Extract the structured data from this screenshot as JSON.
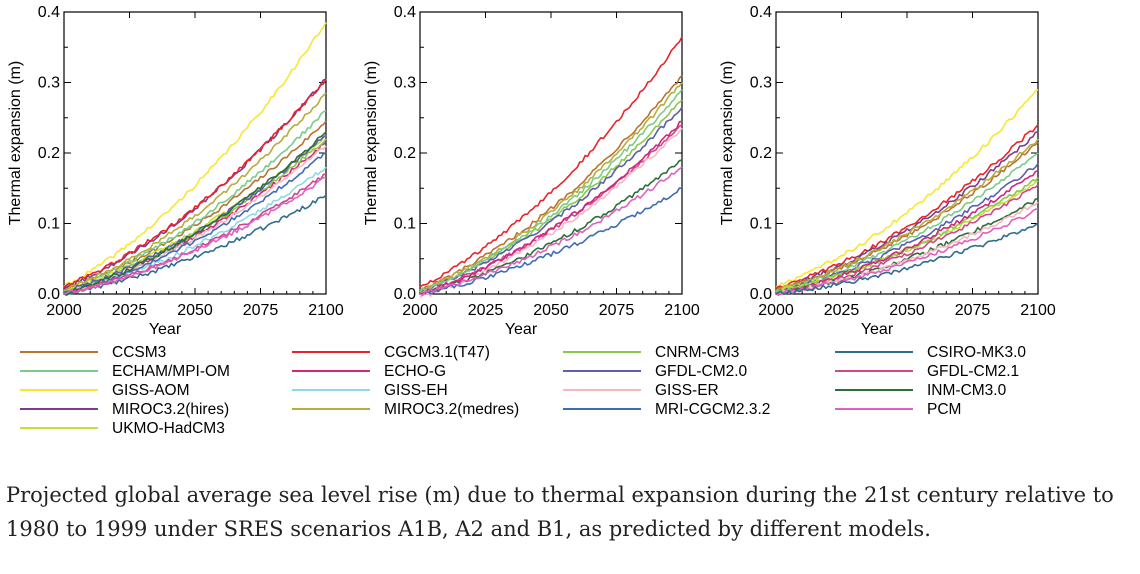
{
  "chart_data": [
    {
      "type": "line",
      "scenario": "A1B",
      "xlabel": "Year",
      "ylabel": "Thermal expansion (m)",
      "xlim": [
        2000,
        2100
      ],
      "ylim": [
        0,
        0.4
      ],
      "xticks": [
        "2000",
        "2025",
        "2050",
        "2075",
        "2100"
      ],
      "yticks": [
        "0.0",
        "0.1",
        "0.2",
        "0.3",
        "0.4"
      ],
      "x": [
        2000,
        2100
      ],
      "series": [
        {
          "name": "CCSM3",
          "values": [
            0.005,
            0.245
          ]
        },
        {
          "name": "ECHAM/MPI-OM",
          "values": [
            0.003,
            0.26
          ]
        },
        {
          "name": "GISS-AOM",
          "values": [
            0.01,
            0.385
          ]
        },
        {
          "name": "MIROC3.2(hires)",
          "values": [
            0.008,
            0.305
          ]
        },
        {
          "name": "UKMO-HadCM3",
          "values": [
            0.005,
            0.225
          ]
        },
        {
          "name": "CGCM3.1(T47)",
          "values": [
            0.01,
            0.305
          ]
        },
        {
          "name": "ECHO-G",
          "values": [
            0.0,
            0.215
          ]
        },
        {
          "name": "GISS-EH",
          "values": [
            0.0,
            0.18
          ]
        },
        {
          "name": "MIROC3.2(medres)",
          "values": [
            0.005,
            0.285
          ]
        },
        {
          "name": "CNRM-CM3",
          "values": [
            0.003,
            0.22
          ]
        },
        {
          "name": "GFDL-CM2.0",
          "values": [
            0.003,
            0.225
          ]
        },
        {
          "name": "GISS-ER",
          "values": [
            0.0,
            0.21
          ]
        },
        {
          "name": "MRI-CGCM2.3.2",
          "values": [
            0.0,
            0.2
          ]
        },
        {
          "name": "CSIRO-MK3.0",
          "values": [
            0.0,
            0.14
          ]
        },
        {
          "name": "GFDL-CM2.1",
          "values": [
            0.0,
            0.17
          ]
        },
        {
          "name": "INM-CM3.0",
          "values": [
            0.0,
            0.23
          ]
        },
        {
          "name": "PCM",
          "values": [
            0.0,
            0.165
          ]
        }
      ]
    },
    {
      "type": "line",
      "scenario": "A2",
      "xlabel": "Year",
      "ylabel": "Thermal expansion (m)",
      "xlim": [
        2000,
        2100
      ],
      "ylim": [
        0,
        0.4
      ],
      "xticks": [
        "2000",
        "2025",
        "2050",
        "2075",
        "2100"
      ],
      "yticks": [
        "0.0",
        "0.1",
        "0.2",
        "0.3",
        "0.4"
      ],
      "x": [
        2000,
        2100
      ],
      "series": [
        {
          "name": "CCSM3",
          "values": [
            0.005,
            0.31
          ]
        },
        {
          "name": "CGCM3.1(T47)",
          "values": [
            0.01,
            0.365
          ]
        },
        {
          "name": "CNRM-CM3",
          "values": [
            0.003,
            0.275
          ]
        },
        {
          "name": "GFDL-CM2.0",
          "values": [
            0.003,
            0.265
          ]
        },
        {
          "name": "GFDL-CM2.1",
          "values": [
            0.0,
            0.24
          ]
        },
        {
          "name": "GISS-ER",
          "values": [
            -0.005,
            0.235
          ]
        },
        {
          "name": "INM-CM3.0",
          "values": [
            0.0,
            0.19
          ]
        },
        {
          "name": "MIROC3.2(medres)",
          "values": [
            0.005,
            0.3
          ]
        },
        {
          "name": "MRI-CGCM2.3.2",
          "values": [
            0.0,
            0.15
          ]
        },
        {
          "name": "ECHAM/MPI-OM",
          "values": [
            0.003,
            0.29
          ]
        },
        {
          "name": "ECHO-G",
          "values": [
            0.0,
            0.245
          ]
        },
        {
          "name": "PCM",
          "values": [
            0.0,
            0.18
          ]
        }
      ]
    },
    {
      "type": "line",
      "scenario": "B1",
      "xlabel": "Year",
      "ylabel": "Thermal expansion (m)",
      "xlim": [
        2000,
        2100
      ],
      "ylim": [
        0,
        0.4
      ],
      "xticks": [
        "2000",
        "2025",
        "2050",
        "2075",
        "2100"
      ],
      "yticks": [
        "0.0",
        "0.1",
        "0.2",
        "0.3",
        "0.4"
      ],
      "x": [
        2000,
        2100
      ],
      "series": [
        {
          "name": "GISS-AOM",
          "values": [
            0.01,
            0.29
          ]
        },
        {
          "name": "CGCM3.1(T47)",
          "values": [
            0.008,
            0.24
          ]
        },
        {
          "name": "MIROC3.2(hires)",
          "values": [
            0.006,
            0.23
          ]
        },
        {
          "name": "CCSM3",
          "values": [
            0.005,
            0.215
          ]
        },
        {
          "name": "MIROC3.2(medres)",
          "values": [
            0.005,
            0.22
          ]
        },
        {
          "name": "ECHAM/MPI-OM",
          "values": [
            0.003,
            0.2
          ]
        },
        {
          "name": "GFDL-CM2.0",
          "values": [
            0.003,
            0.185
          ]
        },
        {
          "name": "UKMO-HadCM3",
          "values": [
            0.004,
            0.16
          ]
        },
        {
          "name": "CNRM-CM3",
          "values": [
            0.003,
            0.165
          ]
        },
        {
          "name": "ECHO-G",
          "values": [
            0.0,
            0.175
          ]
        },
        {
          "name": "GFDL-CM2.1",
          "values": [
            0.0,
            0.155
          ]
        },
        {
          "name": "INM-CM3.0",
          "values": [
            0.0,
            0.135
          ]
        },
        {
          "name": "GISS-ER",
          "values": [
            0.0,
            0.13
          ]
        },
        {
          "name": "PCM",
          "values": [
            0.0,
            0.12
          ]
        },
        {
          "name": "CSIRO-MK3.0",
          "values": [
            0.0,
            0.1
          ]
        }
      ]
    }
  ],
  "legend": [
    {
      "name": "CCSM3",
      "color": "#B87333"
    },
    {
      "name": "ECHAM/MPI-OM",
      "color": "#7ACB8A"
    },
    {
      "name": "GISS-AOM",
      "color": "#F7E634"
    },
    {
      "name": "MIROC3.2(hires)",
      "color": "#7B3B8F"
    },
    {
      "name": "UKMO-HadCM3",
      "color": "#C4E03C"
    },
    {
      "name": "CGCM3.1(T47)",
      "color": "#E8242B"
    },
    {
      "name": "ECHO-G",
      "color": "#D0277C"
    },
    {
      "name": "GISS-EH",
      "color": "#8ED8E8"
    },
    {
      "name": "MIROC3.2(medres)",
      "color": "#B8AC3A"
    },
    {
      "name": "CNRM-CM3",
      "color": "#8CC84B"
    },
    {
      "name": "GFDL-CM2.0",
      "color": "#5A5FB0"
    },
    {
      "name": "GISS-ER",
      "color": "#F5B7C2"
    },
    {
      "name": "MRI-CGCM2.3.2",
      "color": "#3E6DB5"
    },
    {
      "name": "CSIRO-MK3.0",
      "color": "#2E6E8E"
    },
    {
      "name": "GFDL-CM2.1",
      "color": "#D0458E"
    },
    {
      "name": "INM-CM3.0",
      "color": "#2F6E3A"
    },
    {
      "name": "PCM",
      "color": "#E060C0"
    }
  ],
  "caption": "Projected global average sea level rise (m) due to thermal expansion during the 21st century relative to 1980 to 1999 under SRES scenarios A1B, A2 and B1, as predicted by different models."
}
